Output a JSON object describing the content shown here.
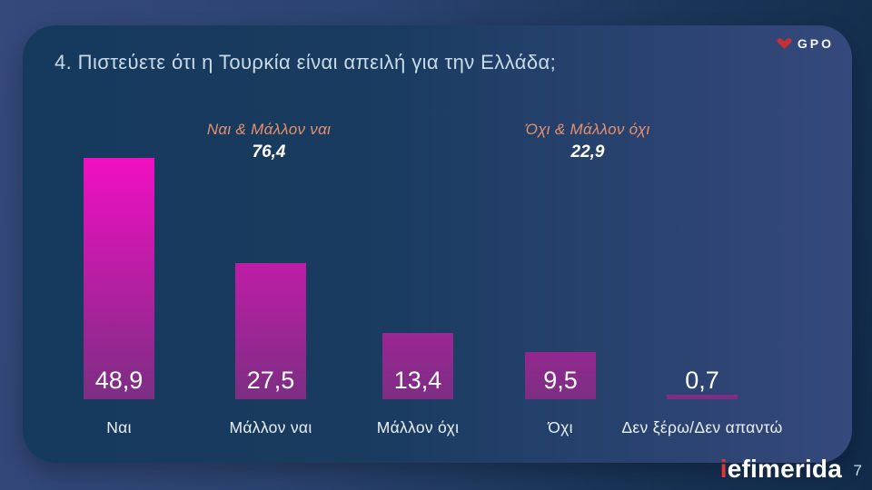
{
  "header": {
    "title": "4. Πιστεύετε ότι η Τουρκία είναι απειλή για την Ελλάδα;"
  },
  "logos": {
    "gpo_text": "GPO",
    "iefimerida_first": "i",
    "iefimerida_rest": "efimerida"
  },
  "page": {
    "number": "7"
  },
  "chart_data": {
    "type": "bar",
    "title": "4. Πιστεύετε ότι η Τουρκία είναι απειλή για την Ελλάδα;",
    "categories": [
      "Ναι",
      "Μάλλον ναι",
      "Μάλλον όχι",
      "Όχι",
      "Δεν ξέρω/Δεν απαντώ"
    ],
    "values": [
      48.9,
      27.5,
      13.4,
      9.5,
      0.7
    ],
    "value_labels": [
      "48,9",
      "27,5",
      "13,4",
      "9,5",
      "0,7"
    ],
    "groups": [
      {
        "label": "Ναι & Μάλλον ναι",
        "value": 76.4,
        "value_label": "76,4"
      },
      {
        "label": "Όχι & Μάλλον όχι",
        "value": 22.9,
        "value_label": "22,9"
      }
    ],
    "ylim": [
      0,
      50
    ],
    "grid": false,
    "legend": false,
    "colors": {
      "bar_gradient_top": "#f10fc2",
      "bar_gradient_bottom": "#7c2e83",
      "group_label": "#e8906c",
      "value_label": "#ffffff",
      "category_label": "#e9f0f8",
      "panel_left": "#163a5d",
      "panel_right": "#35497c",
      "gpo_icon_red": "#c62f35",
      "iefimerida_red": "#e03636"
    }
  }
}
